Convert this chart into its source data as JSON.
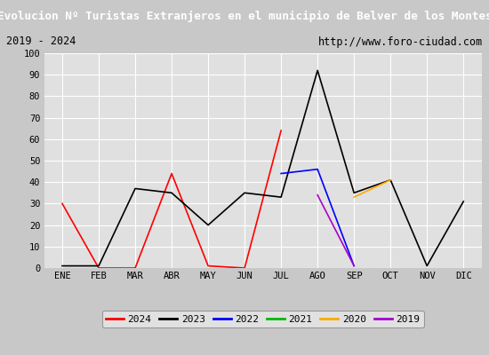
{
  "title": "Evolucion Nº Turistas Extranjeros en el municipio de Belver de los Montes",
  "subtitle_left": "2019 - 2024",
  "subtitle_right": "http://www.foro-ciudad.com",
  "months": [
    "ENE",
    "FEB",
    "MAR",
    "ABR",
    "MAY",
    "JUN",
    "JUL",
    "AGO",
    "SEP",
    "OCT",
    "NOV",
    "DIC"
  ],
  "series": {
    "2024": {
      "color": "#ff0000",
      "data": [
        30,
        0,
        0,
        44,
        1,
        0,
        64,
        null,
        null,
        null,
        null,
        null
      ]
    },
    "2023": {
      "color": "#000000",
      "data": [
        1,
        1,
        37,
        35,
        20,
        35,
        33,
        92,
        35,
        41,
        1,
        31
      ]
    },
    "2022": {
      "color": "#0000ff",
      "data": [
        null,
        null,
        null,
        null,
        null,
        null,
        44,
        46,
        1,
        null,
        null,
        null
      ]
    },
    "2021": {
      "color": "#00bb00",
      "data": [
        null,
        null,
        null,
        null,
        null,
        null,
        null,
        34,
        null,
        null,
        null,
        null
      ]
    },
    "2020": {
      "color": "#ffaa00",
      "data": [
        null,
        null,
        null,
        null,
        null,
        null,
        null,
        null,
        33,
        41,
        null,
        null
      ]
    },
    "2019": {
      "color": "#aa00cc",
      "data": [
        null,
        null,
        null,
        null,
        null,
        null,
        null,
        34,
        1,
        null,
        null,
        null
      ]
    }
  },
  "ylim": [
    0,
    100
  ],
  "yticks": [
    0,
    10,
    20,
    30,
    40,
    50,
    60,
    70,
    80,
    90,
    100
  ],
  "plot_bg_color": "#e0e0e0",
  "outer_bg_color": "#c8c8c8",
  "title_bg_color": "#2255bb",
  "title_color": "#ffffff",
  "subtitle_bg_color": "#d4d4d4",
  "grid_color": "#ffffff",
  "legend_order": [
    "2024",
    "2023",
    "2022",
    "2021",
    "2020",
    "2019"
  ]
}
